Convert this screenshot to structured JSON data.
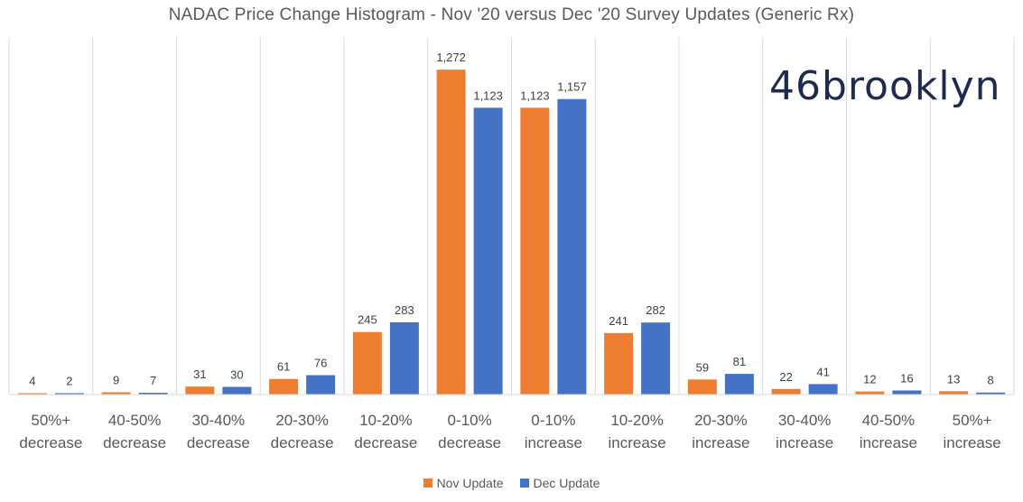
{
  "chart_data": {
    "type": "bar",
    "title": "NADAC Price Change Histogram - Nov '20 versus Dec '20 Survey Updates (Generic Rx)",
    "categories": [
      [
        "50%+",
        "decrease"
      ],
      [
        "40-50%",
        "decrease"
      ],
      [
        "30-40%",
        "decrease"
      ],
      [
        "20-30%",
        "decrease"
      ],
      [
        "10-20%",
        "decrease"
      ],
      [
        "0-10%",
        "decrease"
      ],
      [
        "0-10%",
        "increase"
      ],
      [
        "10-20%",
        "increase"
      ],
      [
        "20-30%",
        "increase"
      ],
      [
        "30-40%",
        "increase"
      ],
      [
        "40-50%",
        "increase"
      ],
      [
        "50%+",
        "increase"
      ]
    ],
    "series": [
      {
        "name": "Nov Update",
        "color": "#ed7d31",
        "values": [
          4,
          9,
          31,
          61,
          245,
          1272,
          1123,
          241,
          59,
          22,
          12,
          13
        ],
        "labels": [
          "4",
          "9",
          "31",
          "61",
          "245",
          "1,272",
          "1,123",
          "241",
          "59",
          "22",
          "12",
          "13"
        ]
      },
      {
        "name": "Dec Update",
        "color": "#4472c4",
        "values": [
          2,
          7,
          30,
          76,
          283,
          1123,
          1157,
          282,
          81,
          41,
          16,
          8
        ],
        "labels": [
          "2",
          "7",
          "30",
          "76",
          "283",
          "1,123",
          "1,157",
          "282",
          "81",
          "41",
          "16",
          "8"
        ]
      }
    ],
    "ylim": [
      0,
      1400
    ],
    "grid": "vertical-category-separators",
    "legend": "bottom-center",
    "data_labels": true
  },
  "branding": {
    "logo_text": "46brooklyn",
    "logo_color": "#1f2a4f"
  }
}
